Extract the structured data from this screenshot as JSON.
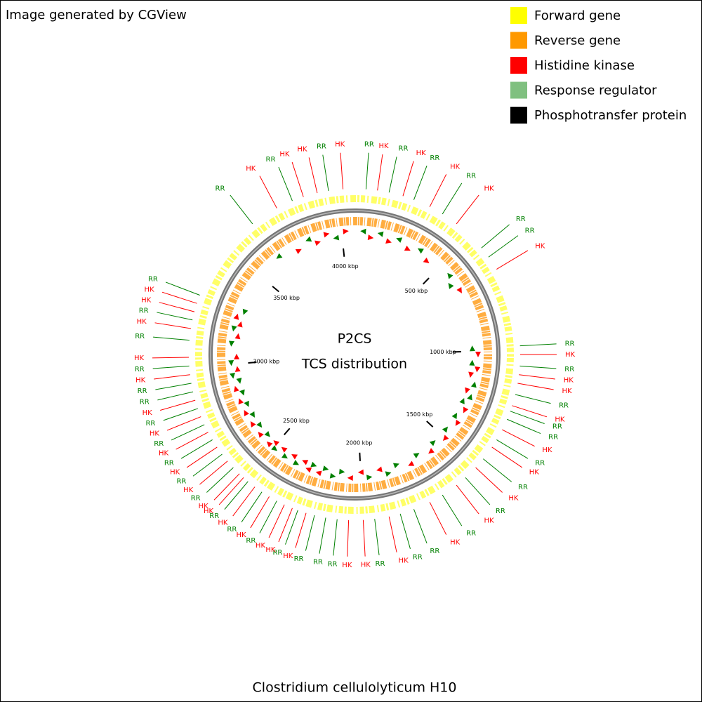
{
  "header": {
    "title": "Image generated by CGView"
  },
  "legend": [
    {
      "name": "Forward gene",
      "color": "#ffff00"
    },
    {
      "name": "Reverse gene",
      "color": "#ff9900"
    },
    {
      "name": "Histidine kinase",
      "color": "#ff0000"
    },
    {
      "name": "Response regulator",
      "color": "#80c080"
    },
    {
      "name": "Phosphotransfer protein",
      "color": "#000000"
    }
  ],
  "map": {
    "title": "P2CS",
    "subtitle": "TCS distribution",
    "organism": "Clostridium cellulolyticum H10",
    "genome_length_kbp": 4068,
    "ticks": [
      {
        "value": 500,
        "label": "500 kbp"
      },
      {
        "value": 1000,
        "label": "1000 kbp"
      },
      {
        "value": 1500,
        "label": "1500 kbp"
      },
      {
        "value": 2000,
        "label": "2000 kbp"
      },
      {
        "value": 2500,
        "label": "2500 kbp"
      },
      {
        "value": 3000,
        "label": "3000 kbp"
      },
      {
        "value": 3500,
        "label": "3500 kbp"
      },
      {
        "value": 4000,
        "label": "4000 kbp"
      }
    ],
    "feature_colors": {
      "HK": "#ff0000",
      "RR": "#008000"
    },
    "features": [
      {
        "label": "RR",
        "position_kbp": 45
      },
      {
        "label": "HK",
        "position_kbp": 90
      },
      {
        "label": "RR",
        "position_kbp": 136
      },
      {
        "label": "HK",
        "position_kbp": 192
      },
      {
        "label": "RR",
        "position_kbp": 237
      },
      {
        "label": "HK",
        "position_kbp": 305
      },
      {
        "label": "RR",
        "position_kbp": 362
      },
      {
        "label": "HK",
        "position_kbp": 429
      },
      {
        "label": "RR",
        "position_kbp": 565
      },
      {
        "label": "RR",
        "position_kbp": 610
      },
      {
        "label": "HK",
        "position_kbp": 667
      },
      {
        "label": "RR",
        "position_kbp": 983
      },
      {
        "label": "HK",
        "position_kbp": 1017
      },
      {
        "label": "RR",
        "position_kbp": 1062
      },
      {
        "label": "HK",
        "position_kbp": 1096
      },
      {
        "label": "HK",
        "position_kbp": 1130
      },
      {
        "label": "RR",
        "position_kbp": 1175
      },
      {
        "label": "HK",
        "position_kbp": 1220
      },
      {
        "label": "RR",
        "position_kbp": 1243
      },
      {
        "label": "RR",
        "position_kbp": 1277
      },
      {
        "label": "HK",
        "position_kbp": 1322
      },
      {
        "label": "RR",
        "position_kbp": 1367
      },
      {
        "label": "HK",
        "position_kbp": 1401
      },
      {
        "label": "RR",
        "position_kbp": 1458
      },
      {
        "label": "HK",
        "position_kbp": 1503
      },
      {
        "label": "RR",
        "position_kbp": 1559
      },
      {
        "label": "HK",
        "position_kbp": 1605
      },
      {
        "label": "RR",
        "position_kbp": 1672
      },
      {
        "label": "HK",
        "position_kbp": 1729
      },
      {
        "label": "RR",
        "position_kbp": 1797
      },
      {
        "label": "RR",
        "position_kbp": 1853
      },
      {
        "label": "HK",
        "position_kbp": 1898
      },
      {
        "label": "RR",
        "position_kbp": 1955
      },
      {
        "label": "HK",
        "position_kbp": 2000
      },
      {
        "label": "HK",
        "position_kbp": 2057
      },
      {
        "label": "RR",
        "position_kbp": 2102
      },
      {
        "label": "RR",
        "position_kbp": 2147
      },
      {
        "label": "RR",
        "position_kbp": 2192
      },
      {
        "label": "HK",
        "position_kbp": 2226
      },
      {
        "label": "RR",
        "position_kbp": 2260
      },
      {
        "label": "HK",
        "position_kbp": 2283
      },
      {
        "label": "HK",
        "position_kbp": 2317
      },
      {
        "label": "RR",
        "position_kbp": 2350
      },
      {
        "label": "HK",
        "position_kbp": 2384
      },
      {
        "label": "RR",
        "position_kbp": 2418
      },
      {
        "label": "HK",
        "position_kbp": 2452
      },
      {
        "label": "RR",
        "position_kbp": 2486
      },
      {
        "label": "HK",
        "position_kbp": 2509
      },
      {
        "label": "HK",
        "position_kbp": 2531
      },
      {
        "label": "RR",
        "position_kbp": 2565
      },
      {
        "label": "HK",
        "position_kbp": 2599
      },
      {
        "label": "RR",
        "position_kbp": 2633
      },
      {
        "label": "HK",
        "position_kbp": 2667
      },
      {
        "label": "RR",
        "position_kbp": 2701
      },
      {
        "label": "HK",
        "position_kbp": 2735
      },
      {
        "label": "RR",
        "position_kbp": 2768
      },
      {
        "label": "HK",
        "position_kbp": 2802
      },
      {
        "label": "RR",
        "position_kbp": 2836
      },
      {
        "label": "HK",
        "position_kbp": 2870
      },
      {
        "label": "RR",
        "position_kbp": 2904
      },
      {
        "label": "RR",
        "position_kbp": 2938
      },
      {
        "label": "HK",
        "position_kbp": 2972
      },
      {
        "label": "RR",
        "position_kbp": 3006
      },
      {
        "label": "HK",
        "position_kbp": 3040
      },
      {
        "label": "RR",
        "position_kbp": 3107
      },
      {
        "label": "HK",
        "position_kbp": 3153
      },
      {
        "label": "RR",
        "position_kbp": 3187
      },
      {
        "label": "HK",
        "position_kbp": 3220
      },
      {
        "label": "HK",
        "position_kbp": 3254
      },
      {
        "label": "RR",
        "position_kbp": 3288
      },
      {
        "label": "RR",
        "position_kbp": 3639
      },
      {
        "label": "HK",
        "position_kbp": 3752
      },
      {
        "label": "RR",
        "position_kbp": 3819
      },
      {
        "label": "HK",
        "position_kbp": 3865
      },
      {
        "label": "HK",
        "position_kbp": 3921
      },
      {
        "label": "RR",
        "position_kbp": 3966
      },
      {
        "label": "HK",
        "position_kbp": 4023
      }
    ]
  }
}
